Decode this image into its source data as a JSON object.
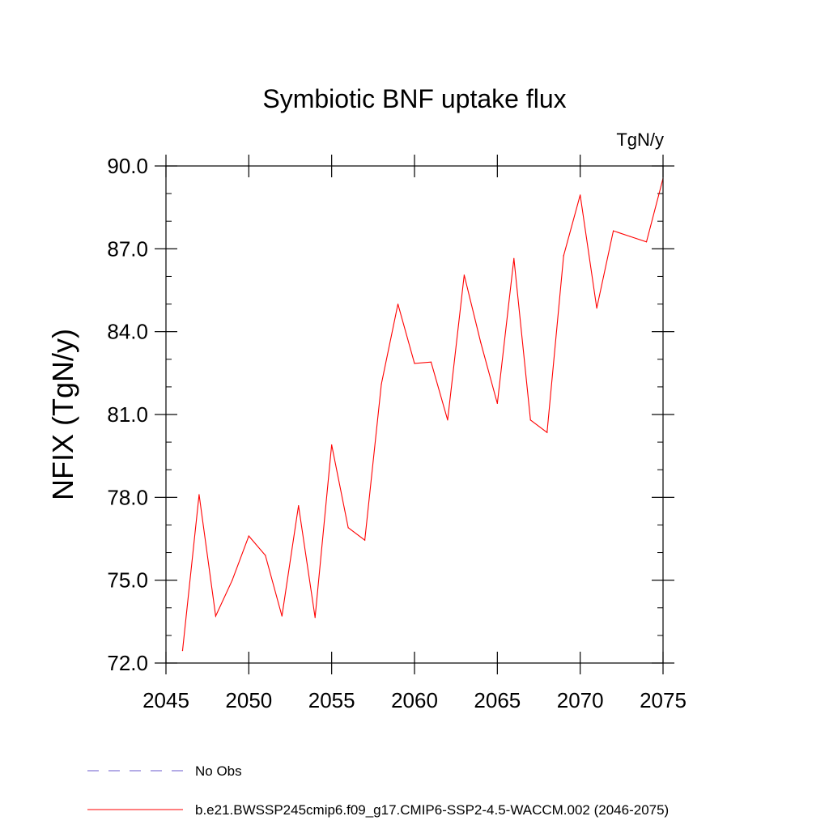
{
  "chart_data": {
    "type": "line",
    "title": "Symbiotic BNF uptake flux",
    "units": "TgN/y",
    "xlabel": "",
    "ylabel": "NFIX  (TgN/y)",
    "xlim": [
      2045,
      2075
    ],
    "ylim": [
      72.0,
      90.0
    ],
    "x_ticks": [
      2045,
      2050,
      2055,
      2060,
      2065,
      2070,
      2075
    ],
    "y_ticks": [
      72.0,
      75.0,
      78.0,
      81.0,
      84.0,
      87.0,
      90.0
    ],
    "x_tick_labels": [
      "2045",
      "2050",
      "2055",
      "2060",
      "2065",
      "2070",
      "2075"
    ],
    "y_tick_labels": [
      "72.0",
      "75.0",
      "78.0",
      "81.0",
      "84.0",
      "87.0",
      "90.0"
    ],
    "grid": false,
    "legend_position": "bottom",
    "series": [
      {
        "name": "No Obs",
        "color": "#6a5acd",
        "style": "dashed",
        "x": [],
        "values": []
      },
      {
        "name": "b.e21.BWSSP245cmip6.f09_g17.CMIP6-SSP2-4.5-WACCM.002 (2046-2075)",
        "color": "#ff0000",
        "style": "solid",
        "x": [
          2046,
          2047,
          2048,
          2049,
          2050,
          2051,
          2052,
          2053,
          2054,
          2055,
          2056,
          2057,
          2058,
          2059,
          2060,
          2061,
          2062,
          2063,
          2064,
          2065,
          2066,
          2067,
          2068,
          2069,
          2070,
          2071,
          2072,
          2073,
          2074,
          2075
        ],
        "values": [
          72.45,
          78.1,
          73.7,
          75.0,
          76.6,
          75.9,
          73.7,
          77.7,
          73.65,
          79.9,
          76.9,
          76.45,
          82.1,
          85.0,
          82.85,
          82.9,
          80.8,
          86.05,
          83.6,
          81.4,
          86.65,
          80.8,
          80.35,
          86.75,
          88.95,
          84.85,
          87.65,
          87.45,
          87.25,
          89.55
        ]
      }
    ]
  }
}
